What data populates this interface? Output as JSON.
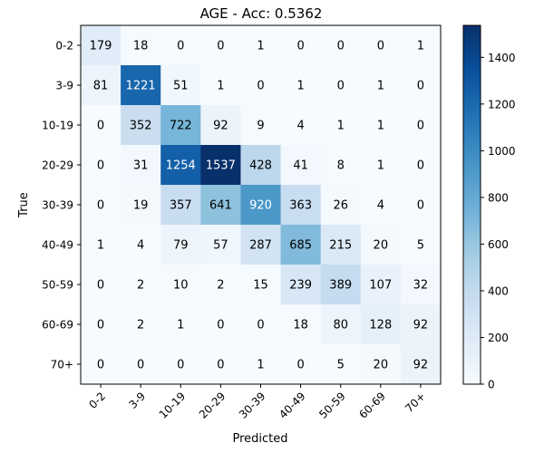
{
  "chart_data": {
    "type": "heatmap",
    "title": "AGE - Acc: 0.5362",
    "xlabel": "Predicted",
    "ylabel": "True",
    "x_categories": [
      "0-2",
      "3-9",
      "10-19",
      "20-29",
      "30-39",
      "40-49",
      "50-59",
      "60-69",
      "70+"
    ],
    "y_categories": [
      "0-2",
      "3-9",
      "10-19",
      "20-29",
      "30-39",
      "40-49",
      "50-59",
      "60-69",
      "70+"
    ],
    "values": [
      [
        179,
        18,
        0,
        0,
        1,
        0,
        0,
        0,
        1
      ],
      [
        81,
        1221,
        51,
        1,
        0,
        1,
        0,
        1,
        0
      ],
      [
        0,
        352,
        722,
        92,
        9,
        4,
        1,
        1,
        0
      ],
      [
        0,
        31,
        1254,
        1537,
        428,
        41,
        8,
        1,
        0
      ],
      [
        0,
        19,
        357,
        641,
        920,
        363,
        26,
        4,
        0
      ],
      [
        1,
        4,
        79,
        57,
        287,
        685,
        215,
        20,
        5
      ],
      [
        0,
        2,
        10,
        2,
        15,
        239,
        389,
        107,
        32
      ],
      [
        0,
        2,
        1,
        0,
        0,
        18,
        80,
        128,
        92
      ],
      [
        0,
        0,
        0,
        0,
        1,
        0,
        5,
        20,
        92
      ]
    ],
    "colormap": "Blues",
    "colorbar": {
      "range": [
        0,
        1537
      ],
      "ticks": [
        0,
        200,
        400,
        600,
        800,
        1000,
        1200,
        1400
      ]
    },
    "grid": false,
    "legend": "none"
  }
}
